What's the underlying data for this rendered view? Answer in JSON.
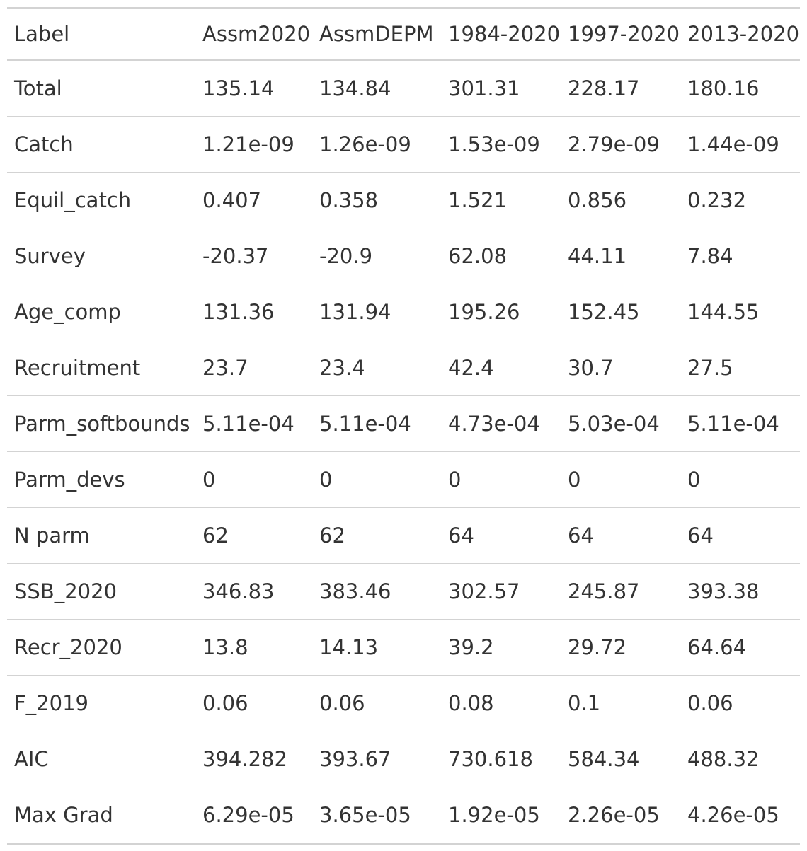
{
  "table": {
    "headers": [
      "Label",
      "Assm2020",
      "AssmDEPM",
      "1984-2020",
      "1997-2020",
      "2013-2020"
    ],
    "rows": [
      [
        "Total",
        "135.14",
        "134.84",
        "301.31",
        "228.17",
        "180.16"
      ],
      [
        "Catch",
        "1.21e-09",
        "1.26e-09",
        "1.53e-09",
        "2.79e-09",
        "1.44e-09"
      ],
      [
        "Equil_catch",
        "0.407",
        "0.358",
        "1.521",
        "0.856",
        "0.232"
      ],
      [
        "Survey",
        "-20.37",
        "-20.9",
        "62.08",
        "44.11",
        "7.84"
      ],
      [
        "Age_comp",
        "131.36",
        "131.94",
        "195.26",
        "152.45",
        "144.55"
      ],
      [
        "Recruitment",
        "23.7",
        "23.4",
        "42.4",
        "30.7",
        "27.5"
      ],
      [
        "Parm_softbounds",
        "5.11e-04",
        "5.11e-04",
        "4.73e-04",
        "5.03e-04",
        "5.11e-04"
      ],
      [
        "Parm_devs",
        "0",
        "0",
        "0",
        "0",
        "0"
      ],
      [
        "N parm",
        "62",
        "62",
        "64",
        "64",
        "64"
      ],
      [
        "SSB_2020",
        "346.83",
        "383.46",
        "302.57",
        "245.87",
        "393.38"
      ],
      [
        "Recr_2020",
        "13.8",
        "14.13",
        "39.2",
        "29.72",
        "64.64"
      ],
      [
        "F_2019",
        "0.06",
        "0.06",
        "0.08",
        "0.1",
        "0.06"
      ],
      [
        "AIC",
        "394.282",
        "393.67",
        "730.618",
        "584.34",
        "488.32"
      ],
      [
        "Max Grad",
        "6.29e-05",
        "3.65e-05",
        "1.92e-05",
        "2.26e-05",
        "4.26e-05"
      ]
    ]
  },
  "colors": {
    "text": "#333333",
    "rule": "#d3d3d3",
    "background": "#ffffff"
  }
}
